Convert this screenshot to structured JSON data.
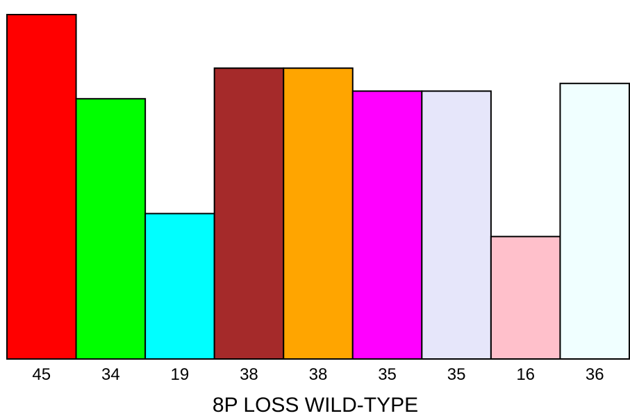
{
  "chart_data": {
    "type": "bar",
    "xlabel": "8P LOSS WILD-TYPE",
    "ylabel": "",
    "ylim": [
      0,
      45
    ],
    "categories": [
      "45",
      "34",
      "19",
      "38",
      "38",
      "35",
      "35",
      "16",
      "36"
    ],
    "values": [
      45,
      34,
      19,
      38,
      38,
      35,
      35,
      16,
      36
    ],
    "colors": [
      "#ff0000",
      "#00ff00",
      "#00ffff",
      "#a52a2a",
      "#ffa500",
      "#ff00ff",
      "#e6e6fa",
      "#ffc0cb",
      "#f0ffff"
    ],
    "grid": false,
    "legend": "none"
  }
}
